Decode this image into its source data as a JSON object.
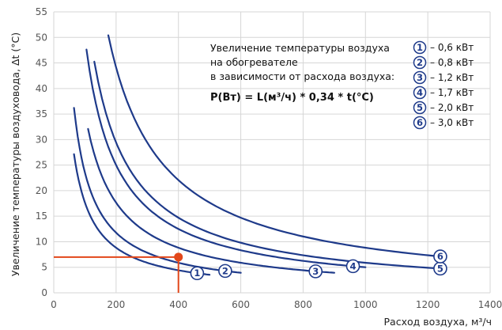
{
  "chart_data": {
    "type": "line",
    "xlabel": "Расход воздуха, м³/ч",
    "ylabel": "Увеличение температуры воздуховода, Δt (°C)",
    "xlim": [
      0,
      1400
    ],
    "ylim": [
      0,
      55
    ],
    "xticks": [
      0,
      200,
      400,
      600,
      800,
      1000,
      1200,
      1400
    ],
    "yticks": [
      0,
      5,
      10,
      15,
      20,
      25,
      30,
      35,
      40,
      45,
      50,
      55
    ],
    "grid": true,
    "annotation": {
      "lines": [
        "Увеличение температуры воздуха",
        "на обогревателе",
        "в зависимости от расхода воздуха:"
      ],
      "formula": "P(Вт) = L(м³/ч) * 0,34 * t(°C)"
    },
    "legend": [
      {
        "num": "1",
        "label": "– 0,6 кВт"
      },
      {
        "num": "2",
        "label": "– 0,8 кВт"
      },
      {
        "num": "3",
        "label": "– 1,2 кВт"
      },
      {
        "num": "4",
        "label": "– 1,7 кВт"
      },
      {
        "num": "5",
        "label": "– 2,0 кВт"
      },
      {
        "num": "6",
        "label": "– 3,0 кВт"
      }
    ],
    "series": [
      {
        "num": "1",
        "power_w": 600,
        "x_start": 65,
        "x_end": 500,
        "marker_x": 460
      },
      {
        "num": "2",
        "power_w": 800,
        "x_start": 65,
        "x_end": 600,
        "marker_x": 550
      },
      {
        "num": "3",
        "power_w": 1200,
        "x_start": 110,
        "x_end": 900,
        "marker_x": 840
      },
      {
        "num": "4",
        "power_w": 1700,
        "x_start": 105,
        "x_end": 1000,
        "marker_x": 960
      },
      {
        "num": "5",
        "power_w": 2000,
        "x_start": 130,
        "x_end": 1250,
        "marker_x": 1240
      },
      {
        "num": "6",
        "power_w": 3000,
        "x_start": 175,
        "x_end": 1250,
        "marker_x": 1240
      }
    ],
    "example": {
      "x": 400,
      "y": 7,
      "color": "#e2471a"
    }
  }
}
